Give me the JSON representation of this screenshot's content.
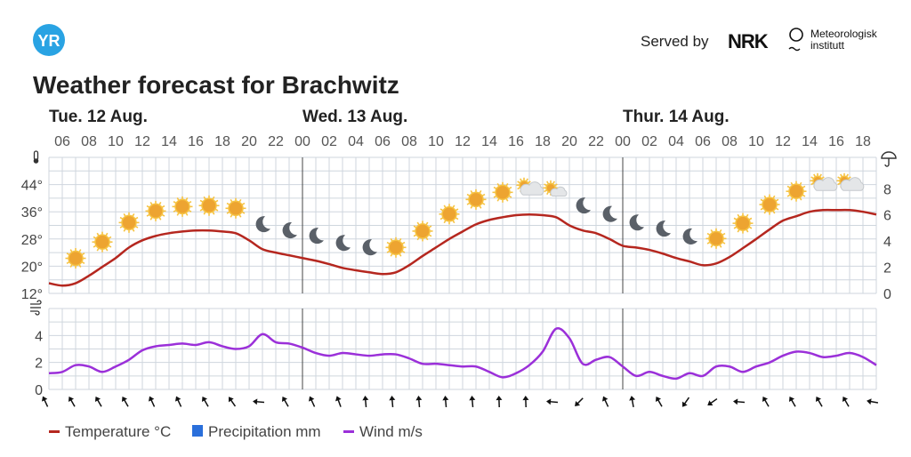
{
  "header": {
    "logo": "YR",
    "served_by": "Served by",
    "partner1": "NRK",
    "partner2_line1": "Meteorologisk",
    "partner2_line2": "institutt",
    "title": "Weather forecast for Brachwitz"
  },
  "days": [
    "Tue. 12 Aug.",
    "Wed. 13 Aug.",
    "Thur. 14 Aug."
  ],
  "legend": {
    "temperature": "Temperature °C",
    "precipitation": "Precipitation mm",
    "wind": "Wind m/s"
  },
  "colors": {
    "temperature": "#b5271f",
    "precipitation": "#2a6fdb",
    "wind": "#9b30d9",
    "logo": "#29a3e3"
  },
  "chart_data": [
    {
      "type": "line",
      "title": "Temperature and precipitation",
      "x_start_hour": 5,
      "x_hours": 63,
      "hour_labels": [
        "06",
        "08",
        "10",
        "12",
        "14",
        "16",
        "18",
        "20",
        "22",
        "00",
        "02",
        "04",
        "06",
        "08",
        "10",
        "12",
        "14",
        "16",
        "18",
        "20",
        "22",
        "00",
        "02",
        "04",
        "06",
        "08",
        "10",
        "12",
        "14",
        "16",
        "18"
      ],
      "y_left_ticks": [
        "12°",
        "20°",
        "28°",
        "36°",
        "44°"
      ],
      "y_left_tick_values": [
        12,
        20,
        28,
        36,
        44
      ],
      "ylim": [
        12,
        52
      ],
      "y_right_ticks": [
        "0",
        "2",
        "4",
        "6",
        "8"
      ],
      "y_right_tick_values": [
        0,
        2,
        4,
        6,
        8
      ],
      "y_right_lim": [
        0,
        10.4
      ],
      "series": [
        {
          "name": "Temperature °C",
          "values": [
            15,
            14.3,
            15,
            17.2,
            19.8,
            22.4,
            25.5,
            27.6,
            28.9,
            29.7,
            30.2,
            30.5,
            30.5,
            30.2,
            29.7,
            27.6,
            25,
            24,
            23.2,
            22.4,
            21.6,
            20.6,
            19.5,
            18.8,
            18.2,
            17.7,
            18.2,
            20.3,
            23,
            25.5,
            28,
            30.2,
            32.3,
            33.6,
            34.4,
            35,
            35.2,
            35,
            34.4,
            32,
            30.5,
            29.7,
            28,
            26,
            25.5,
            24.8,
            23.7,
            22.4,
            21.4,
            20.3,
            20.8,
            22.7,
            25.3,
            28,
            30.8,
            33.4,
            34.7,
            36,
            36.5,
            36.5,
            36.5,
            36,
            35.2
          ]
        },
        {
          "name": "Precipitation mm",
          "values": []
        }
      ],
      "symbols": [
        "sun",
        "sun",
        "sun",
        "sun",
        "sun",
        "sun",
        "sun",
        "moon",
        "moon",
        "moon",
        "moon",
        "moon",
        "sun",
        "sun",
        "sun",
        "sun",
        "sun",
        "partly-cloudy",
        "fair",
        "moon",
        "moon",
        "moon",
        "moon",
        "moon",
        "sun",
        "sun",
        "sun",
        "sun",
        "partly-cloudy",
        "partly-cloudy"
      ]
    },
    {
      "type": "line",
      "title": "Wind",
      "y_ticks": [
        "0",
        "2",
        "4"
      ],
      "y_tick_values": [
        0,
        2,
        4
      ],
      "ylim": [
        0,
        6
      ],
      "series": [
        {
          "name": "Wind m/s",
          "values": [
            1.2,
            1.3,
            1.8,
            1.7,
            1.3,
            1.7,
            2.2,
            2.9,
            3.2,
            3.3,
            3.4,
            3.3,
            3.5,
            3.2,
            3.0,
            3.2,
            4.1,
            3.5,
            3.4,
            3.1,
            2.7,
            2.5,
            2.7,
            2.6,
            2.5,
            2.6,
            2.6,
            2.3,
            1.9,
            1.9,
            1.8,
            1.7,
            1.7,
            1.3,
            0.9,
            1.2,
            1.8,
            2.8,
            4.5,
            3.8,
            1.9,
            2.2,
            2.4,
            1.7,
            1.0,
            1.3,
            1.0,
            0.8,
            1.2,
            1.0,
            1.7,
            1.7,
            1.3,
            1.7,
            2.0,
            2.5,
            2.8,
            2.7,
            2.4,
            2.5,
            2.7,
            2.4,
            1.8
          ]
        }
      ],
      "wind_arrow_directions_deg": [
        -25,
        -30,
        -30,
        -30,
        -25,
        -25,
        -30,
        -35,
        -85,
        -30,
        -25,
        -20,
        -5,
        -5,
        -5,
        -5,
        -5,
        -2,
        -2,
        -85,
        -135,
        -25,
        -10,
        -30,
        -145,
        -125,
        -85,
        -30,
        -30,
        -30,
        -30,
        -80
      ]
    }
  ]
}
